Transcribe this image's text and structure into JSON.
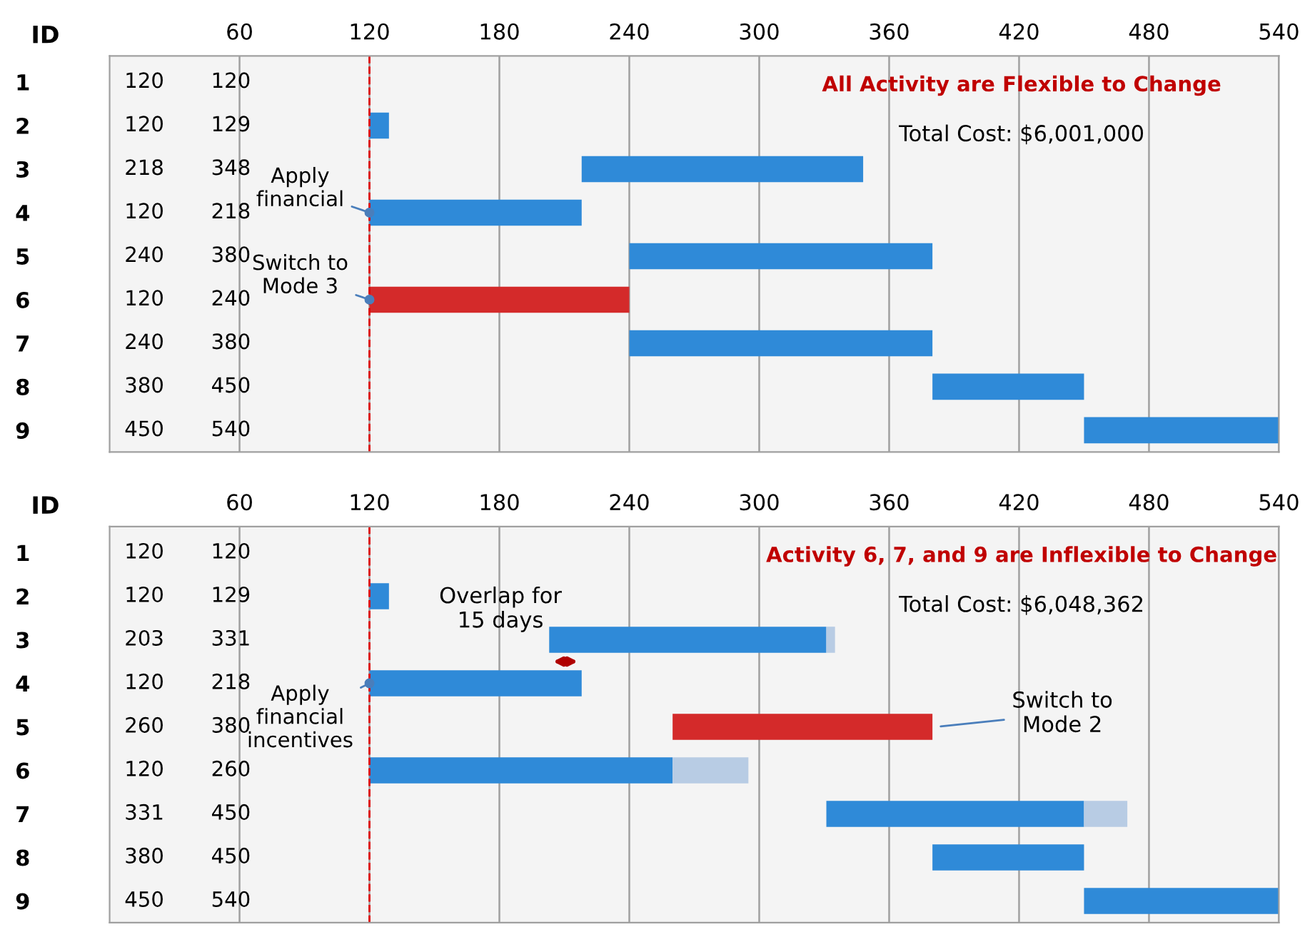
{
  "chart_data": [
    {
      "type": "bar",
      "orientation": "horizontal",
      "title": "All Activity are Flexible to Change",
      "ylabel": "ID",
      "categories": [
        "1",
        "2",
        "3",
        "4",
        "5",
        "6",
        "7",
        "8",
        "9"
      ],
      "series": [
        {
          "colors": [
            "#2f8ad8",
            "#2f8ad8",
            "#2f8ad8",
            "#2f8ad8",
            "#2f8ad8",
            "#d42a2a",
            "#2f8ad8",
            "#2f8ad8",
            "#2f8ad8"
          ],
          "base": [
            null,
            120,
            218,
            120,
            240,
            120,
            240,
            380,
            450
          ],
          "values": [
            null,
            9,
            130,
            98,
            140,
            120,
            140,
            70,
            90
          ]
        }
      ],
      "xlim": [
        0,
        540
      ],
      "xticks": [
        60,
        120,
        180,
        240,
        300,
        360,
        420,
        480,
        540
      ],
      "grid": "x",
      "ref_lines": [
        {
          "axis": "x",
          "value": 120,
          "color": "#e00000",
          "line_style": "dashed"
        }
      ],
      "annotations": [
        "Total Cost: $6,001,000",
        {
          "text": "Apply\nfinancial",
          "x": 120,
          "y": "4"
        },
        {
          "text": "Switch to\nMode 3",
          "x": 120,
          "y": "6"
        },
        "120",
        "120",
        "120",
        "129",
        "218",
        "348",
        "120",
        "218",
        "240",
        "380",
        "120",
        "240",
        "240",
        "380",
        "380",
        "450",
        "450",
        "540"
      ]
    },
    {
      "type": "bar",
      "orientation": "horizontal",
      "title": "Activity 6, 7, and 9 are Inflexible to Change",
      "ylabel": "ID",
      "categories": [
        "1",
        "2",
        "3",
        "4",
        "5",
        "6",
        "7",
        "8",
        "9"
      ],
      "series": [
        {
          "colors": [
            "#2f8ad8",
            "#2f8ad8",
            "#2f8ad8",
            "#2f8ad8",
            "#d42a2a",
            "#2f8ad8",
            "#2f8ad8",
            "#2f8ad8",
            "#2f8ad8"
          ],
          "base": [
            null,
            120,
            203,
            120,
            260,
            120,
            331,
            380,
            450
          ],
          "values": [
            null,
            9,
            128,
            98,
            120,
            140,
            119,
            70,
            90
          ]
        },
        {
          "color": "#b8cce4",
          "base": [
            null,
            null,
            331,
            null,
            null,
            260,
            450,
            null,
            null
          ],
          "values": [
            null,
            null,
            4,
            null,
            null,
            35,
            20,
            null,
            null
          ]
        }
      ],
      "xlim": [
        0,
        540
      ],
      "xticks": [
        60,
        120,
        180,
        240,
        300,
        360,
        420,
        480,
        540
      ],
      "grid": "x",
      "ref_lines": [
        {
          "axis": "x",
          "value": 120,
          "color": "#e00000",
          "line_style": "dashed"
        }
      ],
      "annotations": [
        "Total Cost: $6,048,362",
        {
          "text": "Overlap for\n15 days",
          "x": 218,
          "y": "4"
        },
        {
          "text": "Apply\nfinancial\nincentives",
          "x": 120,
          "y": "4"
        },
        {
          "text": "Switch to\nMode 2",
          "x": 380,
          "y": "5"
        },
        "120",
        "120",
        "120",
        "129",
        "203",
        "331",
        "120",
        "218",
        "260",
        "380",
        "120",
        "260",
        "331",
        "450",
        "380",
        "450",
        "450",
        "540"
      ]
    }
  ]
}
